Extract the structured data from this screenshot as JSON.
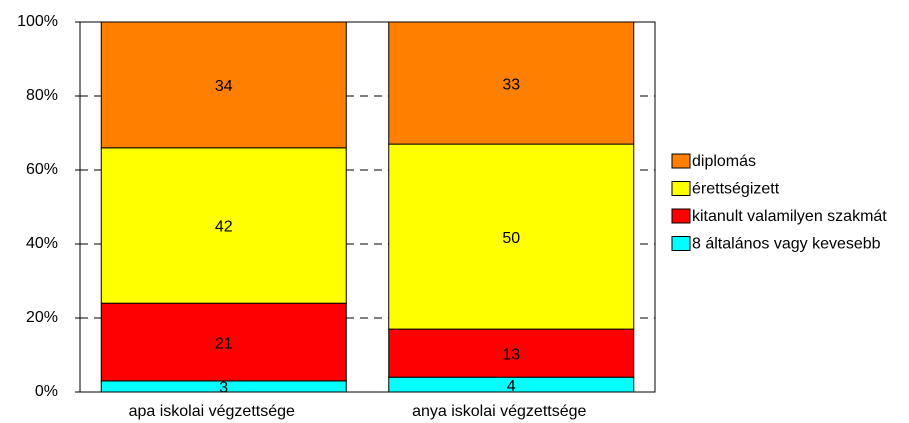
{
  "chart_data": {
    "type": "stacked_bar",
    "categories": [
      "apa iskolai végzettsége",
      "anya iskolai végzettsége"
    ],
    "series": [
      {
        "name": "8 általános vagy kevesebb",
        "color": "#00ffff",
        "values": [
          3,
          4
        ]
      },
      {
        "name": "kitanult valamilyen szakmát",
        "color": "#ff0000",
        "values": [
          21,
          13
        ]
      },
      {
        "name": "érettségizett",
        "color": "#ffff00",
        "values": [
          42,
          50
        ]
      },
      {
        "name": "diplomás",
        "color": "#ff8000",
        "values": [
          34,
          33
        ]
      }
    ],
    "ylim": [
      0,
      100
    ],
    "yticks": [
      {
        "value": 0,
        "label": "0%"
      },
      {
        "value": 20,
        "label": "20%"
      },
      {
        "value": 40,
        "label": "40%"
      },
      {
        "value": 60,
        "label": "60%"
      },
      {
        "value": 80,
        "label": "80%"
      },
      {
        "value": 100,
        "label": "100%"
      }
    ],
    "grid": true,
    "legend": "right"
  }
}
